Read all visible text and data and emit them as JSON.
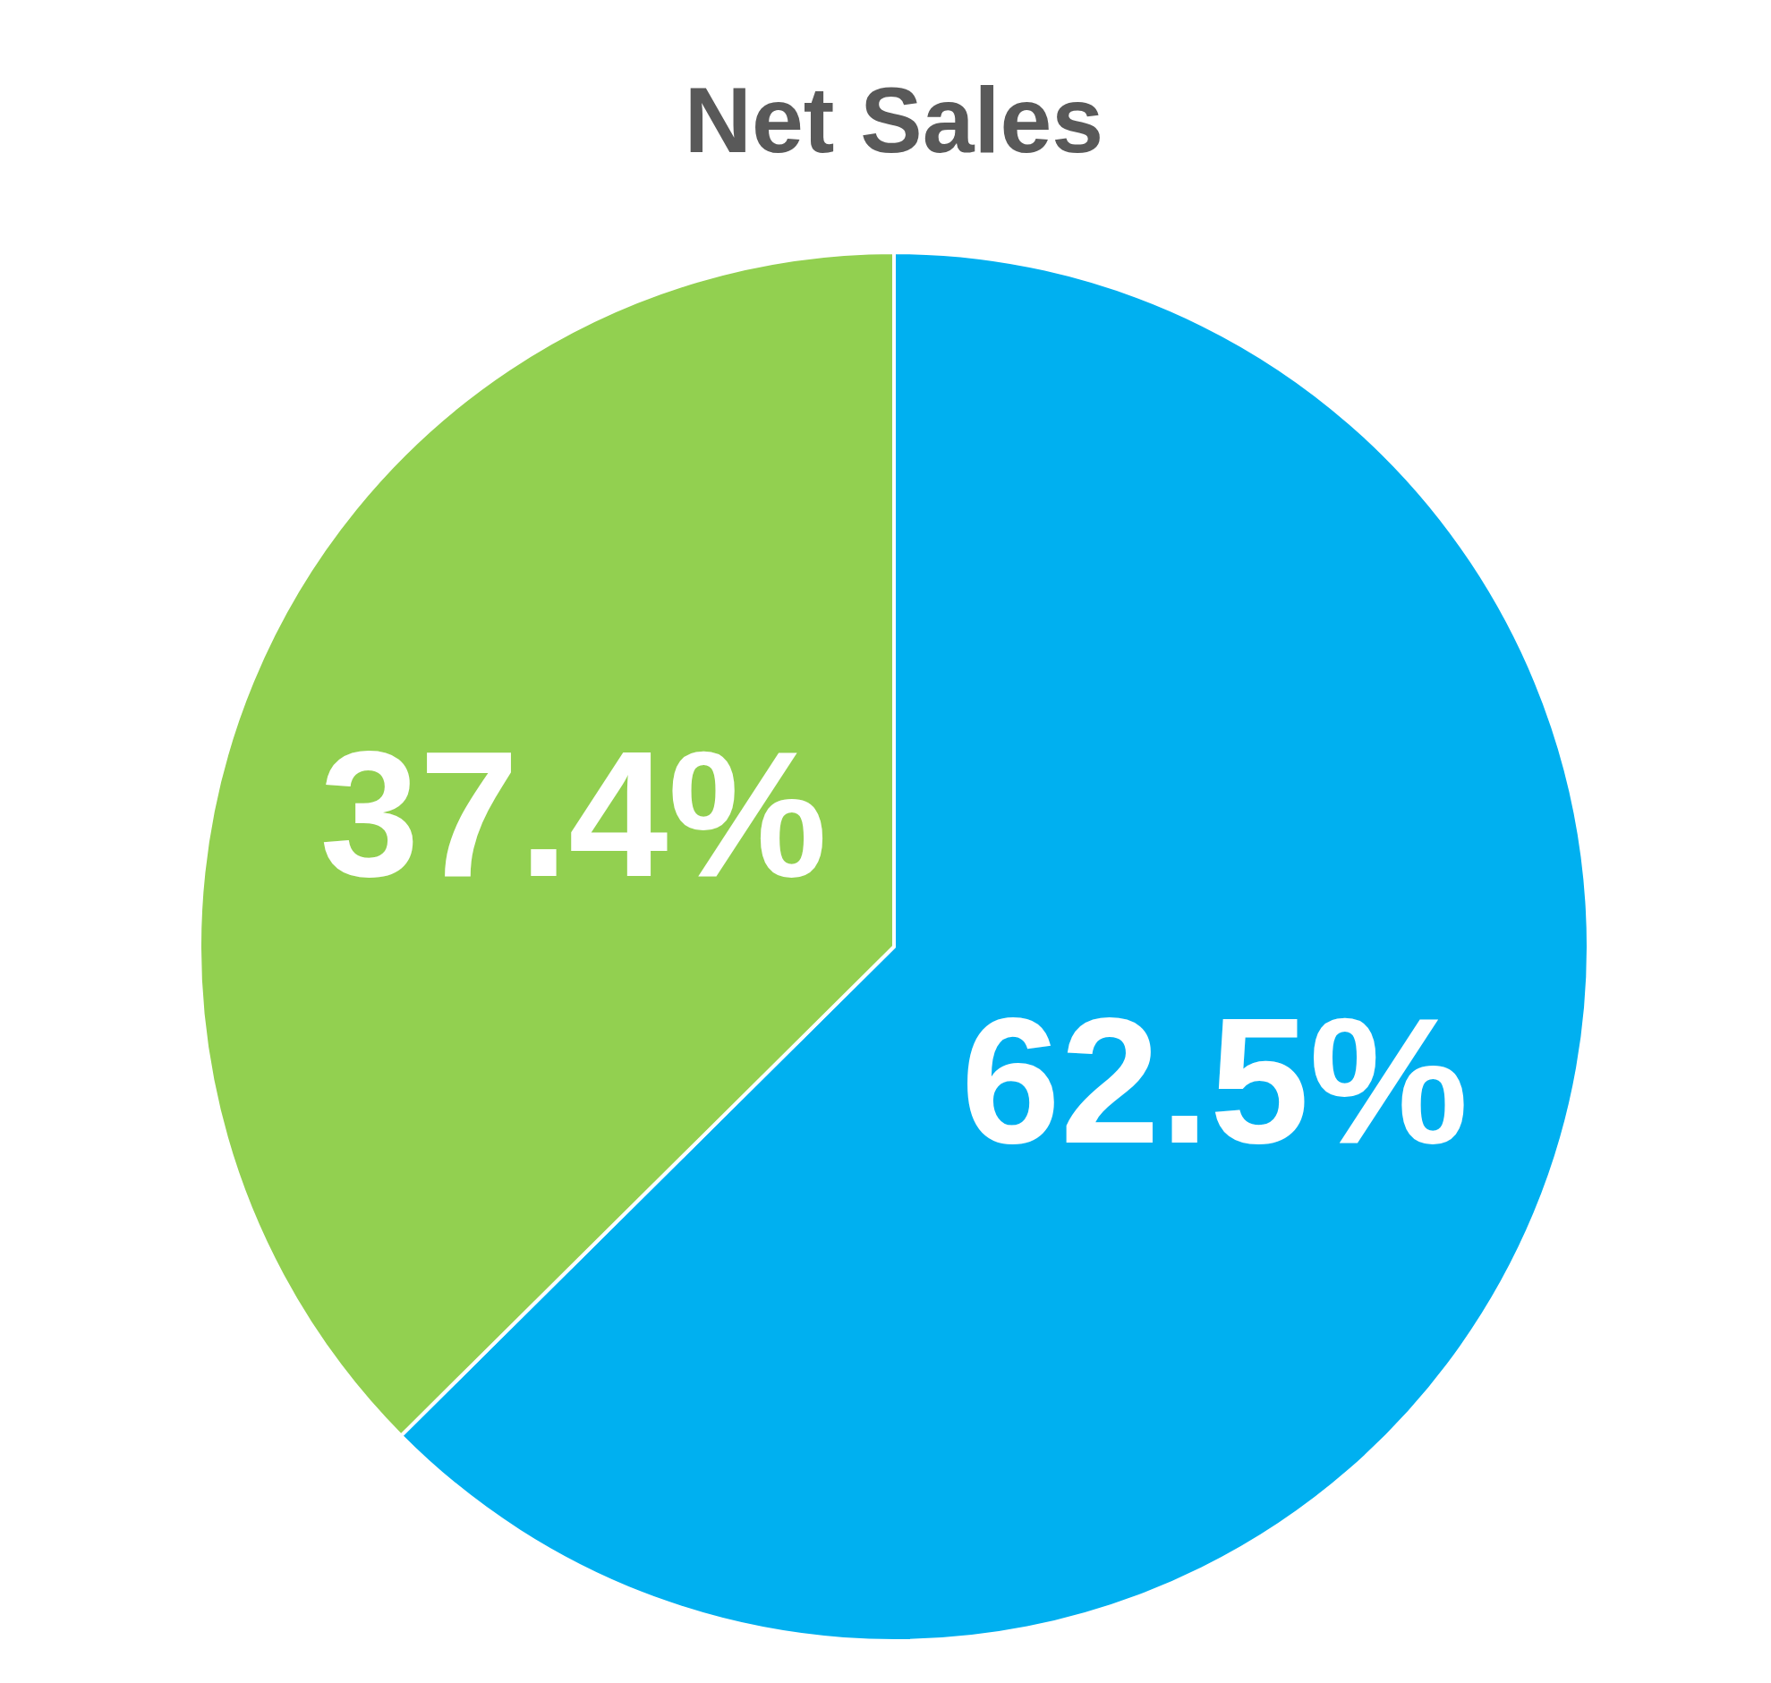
{
  "chart_data": {
    "type": "pie",
    "title": "Net Sales",
    "categories": [
      null,
      null
    ],
    "values": [
      62.5,
      37.4
    ],
    "colors": [
      "#00b0f0",
      "#92d050"
    ],
    "value_labels": [
      "62.5%",
      "37.4%"
    ]
  }
}
